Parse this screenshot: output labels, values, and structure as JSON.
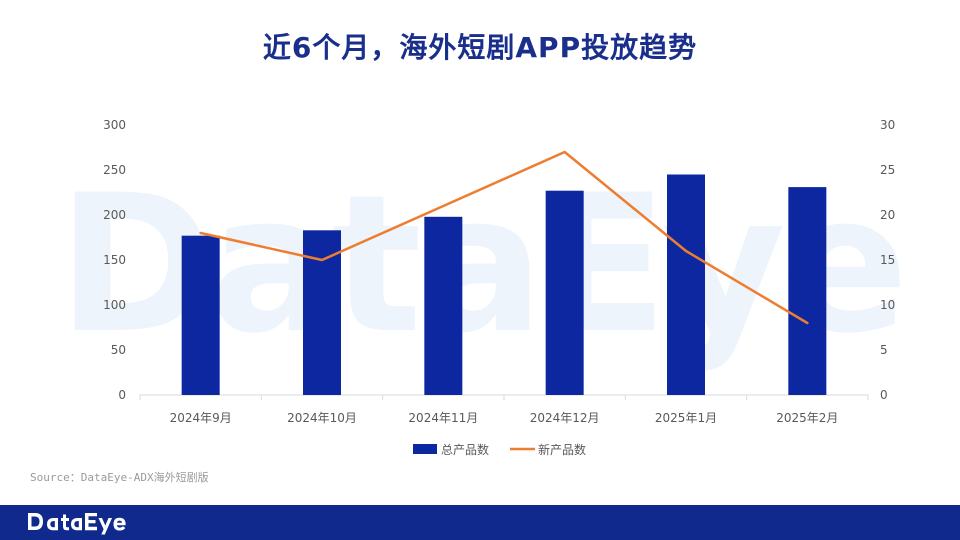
{
  "page": {
    "title": "近6个月，海外短剧APP投放趋势",
    "source": "Source：DataEye-ADX海外短剧版",
    "watermark_wordmark": "DataEye",
    "footer_logo_wordmark": "DataEye"
  },
  "colors": {
    "title": "#1a2f8c",
    "bar": "#0c27a0",
    "line": "#ed7d31",
    "footer": "#0f2a8c",
    "axis_text": "#595959",
    "watermark": "#eef4fb"
  },
  "chart_data": {
    "type": "bar+line",
    "categories": [
      "2024年9月",
      "2024年10月",
      "2024年11月",
      "2024年12月",
      "2025年1月",
      "2025年2月"
    ],
    "series": [
      {
        "name": "总产品数",
        "type": "bar",
        "axis": "left",
        "values": [
          177,
          183,
          198,
          227,
          245,
          231
        ]
      },
      {
        "name": "新产品数",
        "type": "line",
        "axis": "right",
        "values": [
          18,
          15,
          21,
          27,
          16,
          8
        ]
      }
    ],
    "y_left": {
      "min": 0,
      "max": 300,
      "ticks": [
        0,
        50,
        100,
        150,
        200,
        250,
        300
      ]
    },
    "y_right": {
      "min": 0,
      "max": 30,
      "ticks": [
        0,
        5,
        10,
        15,
        20,
        25,
        30
      ]
    },
    "legend": {
      "position": "bottom"
    },
    "grid": false
  }
}
